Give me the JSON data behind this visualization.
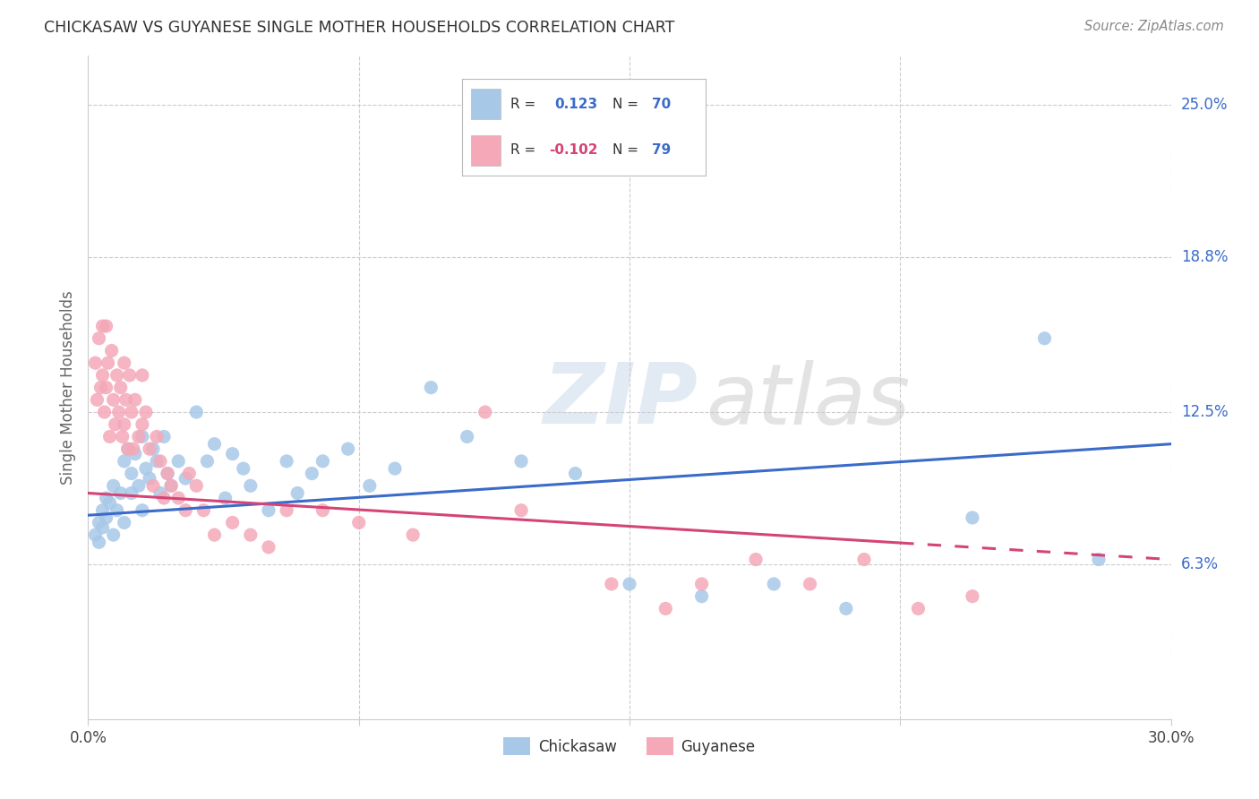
{
  "title": "CHICKASAW VS GUYANESE SINGLE MOTHER HOUSEHOLDS CORRELATION CHART",
  "source": "Source: ZipAtlas.com",
  "ylabel": "Single Mother Households",
  "xlim": [
    0.0,
    30.0
  ],
  "ylim": [
    0.0,
    27.0
  ],
  "yticks": [
    6.3,
    12.5,
    18.8,
    25.0
  ],
  "ytick_labels": [
    "6.3%",
    "12.5%",
    "18.8%",
    "25.0%"
  ],
  "grid_color": "#cccccc",
  "background_color": "#ffffff",
  "chickasaw_color": "#a8c8e8",
  "guyanese_color": "#f4a8b8",
  "chickasaw_line_color": "#3a6bc9",
  "guyanese_line_color": "#d44477",
  "chickasaw_R": "0.123",
  "chickasaw_N": "70",
  "guyanese_R": "-0.102",
  "guyanese_N": "79",
  "legend_label_chickasaw": "Chickasaw",
  "legend_label_guyanese": "Guyanese",
  "watermark_zip": "ZIP",
  "watermark_atlas": "atlas",
  "chick_line_y0": 8.3,
  "chick_line_y1": 11.2,
  "guy_line_y0": 9.2,
  "guy_line_y1": 6.5,
  "guy_dash_start": 22.5,
  "chickasaw_x": [
    0.2,
    0.3,
    0.3,
    0.4,
    0.4,
    0.5,
    0.5,
    0.6,
    0.7,
    0.7,
    0.8,
    0.9,
    1.0,
    1.0,
    1.1,
    1.2,
    1.2,
    1.3,
    1.4,
    1.5,
    1.5,
    1.6,
    1.7,
    1.8,
    1.9,
    2.0,
    2.1,
    2.2,
    2.3,
    2.5,
    2.7,
    3.0,
    3.3,
    3.5,
    3.8,
    4.0,
    4.3,
    4.5,
    5.0,
    5.5,
    5.8,
    6.2,
    6.5,
    7.2,
    7.8,
    8.5,
    9.5,
    10.5,
    12.0,
    13.5,
    15.0,
    17.0,
    19.0,
    21.0,
    24.5,
    26.5,
    28.0
  ],
  "chickasaw_y": [
    7.5,
    8.0,
    7.2,
    8.5,
    7.8,
    9.0,
    8.2,
    8.8,
    9.5,
    7.5,
    8.5,
    9.2,
    10.5,
    8.0,
    11.0,
    10.0,
    9.2,
    10.8,
    9.5,
    11.5,
    8.5,
    10.2,
    9.8,
    11.0,
    10.5,
    9.2,
    11.5,
    10.0,
    9.5,
    10.5,
    9.8,
    12.5,
    10.5,
    11.2,
    9.0,
    10.8,
    10.2,
    9.5,
    8.5,
    10.5,
    9.2,
    10.0,
    10.5,
    11.0,
    9.5,
    10.2,
    13.5,
    11.5,
    10.5,
    10.0,
    5.5,
    5.0,
    5.5,
    4.5,
    8.2,
    15.5,
    6.5
  ],
  "guyanese_x": [
    0.2,
    0.25,
    0.3,
    0.35,
    0.4,
    0.4,
    0.45,
    0.5,
    0.5,
    0.55,
    0.6,
    0.65,
    0.7,
    0.75,
    0.8,
    0.85,
    0.9,
    0.95,
    1.0,
    1.0,
    1.05,
    1.1,
    1.15,
    1.2,
    1.25,
    1.3,
    1.4,
    1.5,
    1.5,
    1.6,
    1.7,
    1.8,
    1.9,
    2.0,
    2.1,
    2.2,
    2.3,
    2.5,
    2.7,
    2.8,
    3.0,
    3.2,
    3.5,
    4.0,
    4.5,
    5.0,
    5.5,
    6.5,
    7.5,
    9.0,
    11.0,
    12.0,
    14.5,
    16.0,
    17.0,
    18.5,
    20.0,
    21.5,
    23.0,
    24.5
  ],
  "guyanese_y": [
    14.5,
    13.0,
    15.5,
    13.5,
    14.0,
    16.0,
    12.5,
    13.5,
    16.0,
    14.5,
    11.5,
    15.0,
    13.0,
    12.0,
    14.0,
    12.5,
    13.5,
    11.5,
    14.5,
    12.0,
    13.0,
    11.0,
    14.0,
    12.5,
    11.0,
    13.0,
    11.5,
    14.0,
    12.0,
    12.5,
    11.0,
    9.5,
    11.5,
    10.5,
    9.0,
    10.0,
    9.5,
    9.0,
    8.5,
    10.0,
    9.5,
    8.5,
    7.5,
    8.0,
    7.5,
    7.0,
    8.5,
    8.5,
    8.0,
    7.5,
    12.5,
    8.5,
    5.5,
    4.5,
    5.5,
    6.5,
    5.5,
    6.5,
    4.5,
    5.0
  ]
}
